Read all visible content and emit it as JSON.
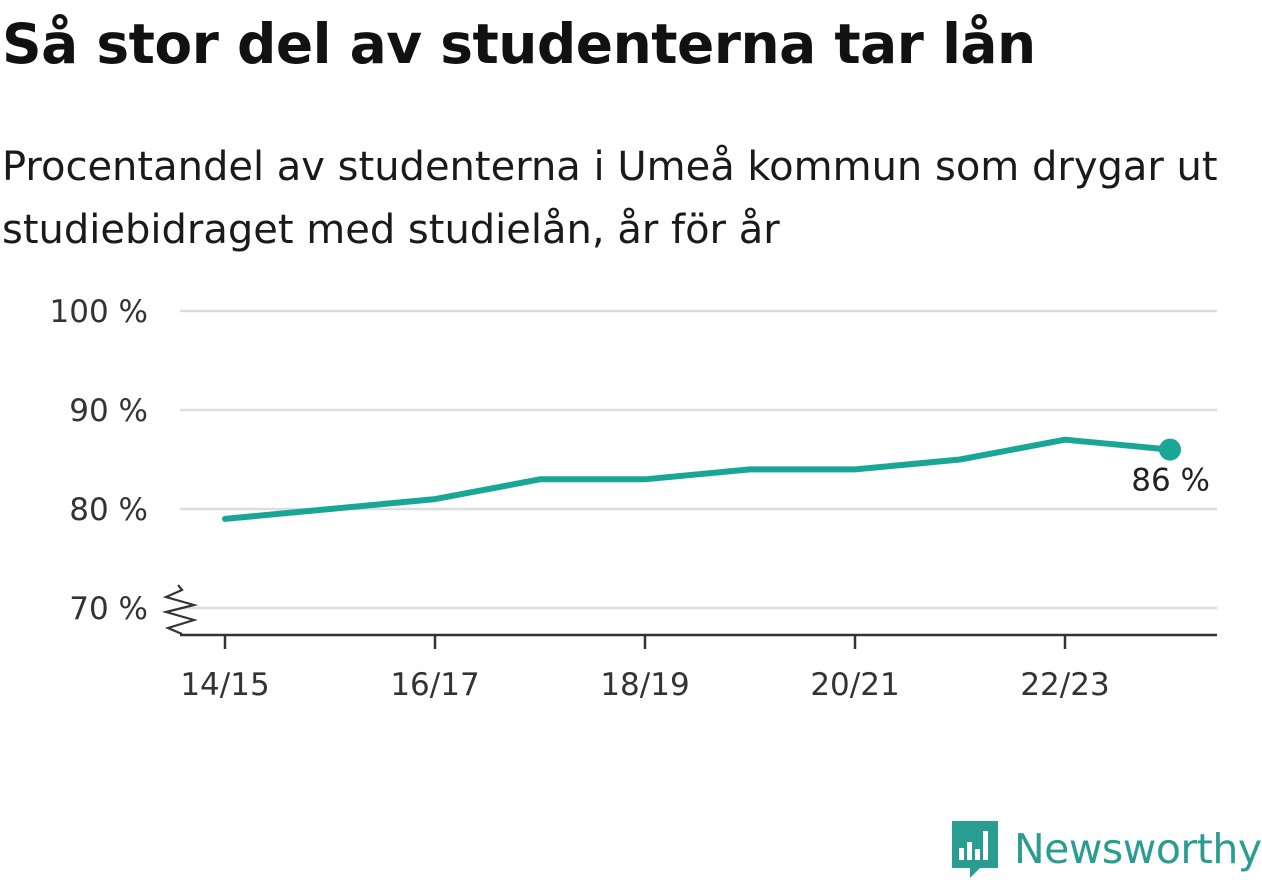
{
  "title": "Så stor del av studenterna tar lån",
  "subtitle": "Procentandel av studenterna i Umeå kommun som drygar ut studiebidraget med studielån, år för år",
  "brand": {
    "name": "Newsworthy",
    "logo_icon": "bar-chart-flag-icon",
    "color": "#2a9d92"
  },
  "colors": {
    "line": "#1aa696",
    "grid": "#dddddd",
    "axis": "#333333"
  },
  "chart_data": {
    "type": "line",
    "title": "Så stor del av studenterna tar lån",
    "subtitle": "Procentandel av studenterna i Umeå kommun som drygar ut studiebidraget med studielån, år för år",
    "x": [
      "14/15",
      "15/16",
      "16/17",
      "17/18",
      "18/19",
      "19/20",
      "20/21",
      "21/22",
      "22/23",
      "23/24"
    ],
    "series": [
      {
        "values": [
          79,
          80,
          81,
          83,
          83,
          84,
          84,
          85,
          87,
          86
        ]
      }
    ],
    "x_tick_labels": [
      "14/15",
      "16/17",
      "18/19",
      "20/21",
      "22/23"
    ],
    "y_ticks": [
      70,
      80,
      90,
      100
    ],
    "y_tick_labels": [
      "70 %",
      "80 %",
      "90 %",
      "100 %"
    ],
    "ylim": [
      70,
      100
    ],
    "y_axis_break": true,
    "grid": true,
    "end_label": "86 %"
  }
}
